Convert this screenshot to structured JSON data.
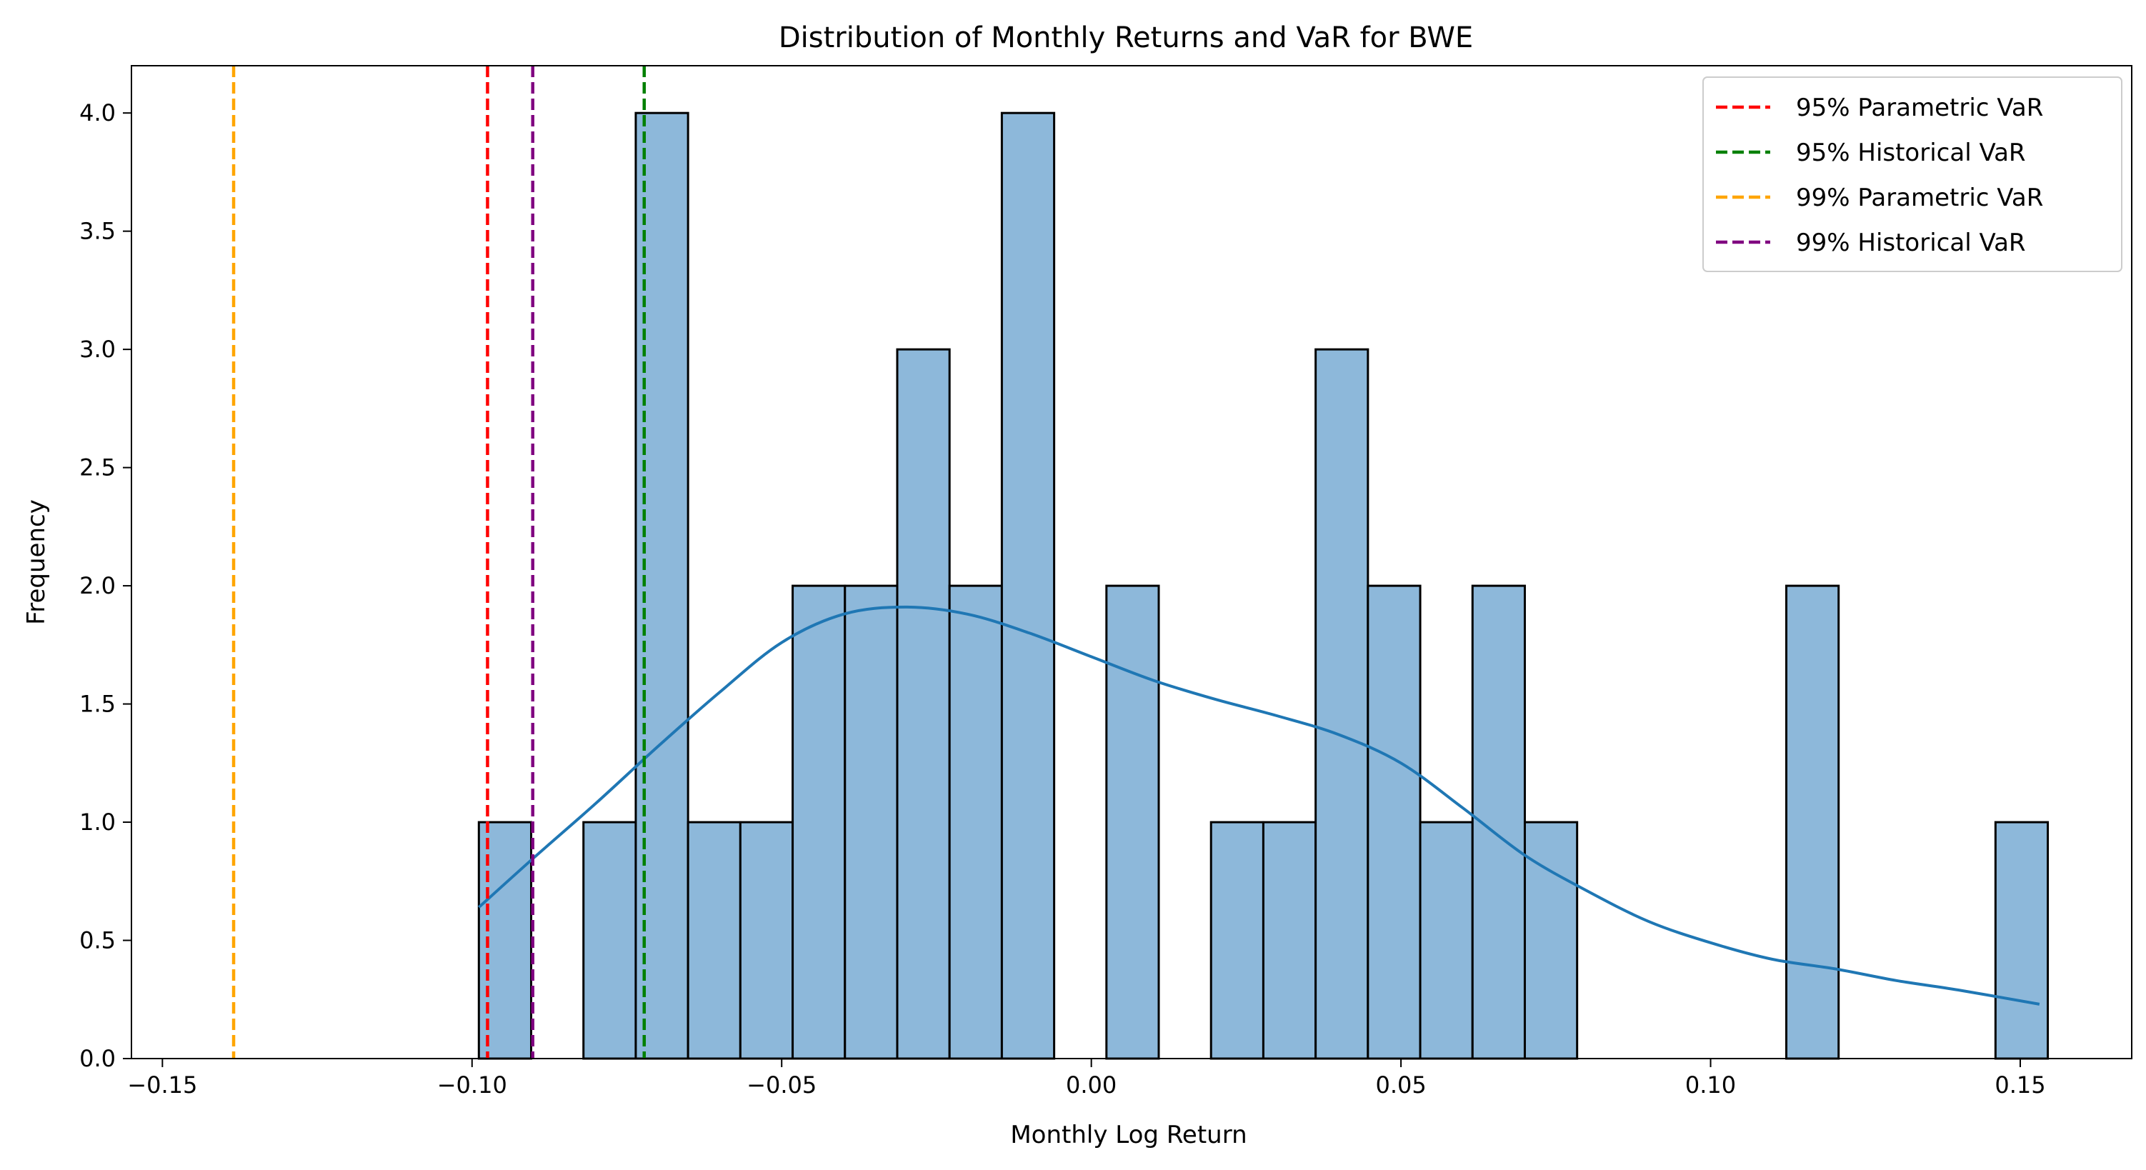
{
  "chart_data": {
    "type": "bar",
    "title": "Distribution of Monthly Returns and VaR for BWE",
    "xlabel": "Monthly Log Return",
    "ylabel": "Frequency",
    "xlim": [
      -0.155,
      0.168
    ],
    "ylim": [
      0,
      4.2
    ],
    "grid": false,
    "legend_position": "top-right",
    "xticks": [
      {
        "value": -0.15,
        "label": "−0.15"
      },
      {
        "value": -0.1,
        "label": "−0.10"
      },
      {
        "value": -0.05,
        "label": "−0.05"
      },
      {
        "value": 0.0,
        "label": "0.00"
      },
      {
        "value": 0.05,
        "label": "0.05"
      },
      {
        "value": 0.1,
        "label": "0.10"
      },
      {
        "value": 0.15,
        "label": "0.15"
      }
    ],
    "yticks": [
      {
        "value": 0.0,
        "label": "0.0"
      },
      {
        "value": 0.5,
        "label": "0.5"
      },
      {
        "value": 1.0,
        "label": "1.0"
      },
      {
        "value": 1.5,
        "label": "1.5"
      },
      {
        "value": 2.0,
        "label": "2.0"
      },
      {
        "value": 2.5,
        "label": "2.5"
      },
      {
        "value": 3.0,
        "label": "3.0"
      },
      {
        "value": 3.5,
        "label": "3.5"
      },
      {
        "value": 4.0,
        "label": "4.0"
      }
    ],
    "histogram": {
      "bin_start": -0.0989,
      "bin_width": 0.008445,
      "counts": [
        1,
        0,
        1,
        4,
        1,
        1,
        2,
        2,
        3,
        2,
        4,
        0,
        2,
        0,
        1,
        1,
        3,
        2,
        1,
        2,
        1,
        0,
        0,
        0,
        0,
        2,
        0,
        0,
        0,
        1
      ],
      "fill_color": "#8db8da",
      "edge_color": "#000000"
    },
    "kde": {
      "color": "#1f77b4",
      "x": [
        -0.0989,
        -0.09,
        -0.08,
        -0.07,
        -0.06,
        -0.05,
        -0.04,
        -0.03,
        -0.02,
        -0.01,
        0.0,
        0.01,
        0.02,
        0.03,
        0.04,
        0.05,
        0.06,
        0.07,
        0.08,
        0.09,
        0.1,
        0.11,
        0.12,
        0.13,
        0.14,
        0.1531
      ],
      "y": [
        0.64,
        0.85,
        1.08,
        1.32,
        1.55,
        1.76,
        1.88,
        1.91,
        1.88,
        1.8,
        1.7,
        1.6,
        1.52,
        1.45,
        1.37,
        1.25,
        1.06,
        0.86,
        0.71,
        0.58,
        0.49,
        0.42,
        0.38,
        0.33,
        0.29,
        0.23
      ]
    },
    "vlines": [
      {
        "name": "95% Parametric VaR",
        "value": -0.0975,
        "color": "#ff0000"
      },
      {
        "name": "95% Historical VaR",
        "value": -0.0722,
        "color": "#008000"
      },
      {
        "name": "99% Parametric VaR",
        "value": -0.1385,
        "color": "#ffa500"
      },
      {
        "name": "99% Historical VaR",
        "value": -0.0902,
        "color": "#800080"
      }
    ]
  }
}
